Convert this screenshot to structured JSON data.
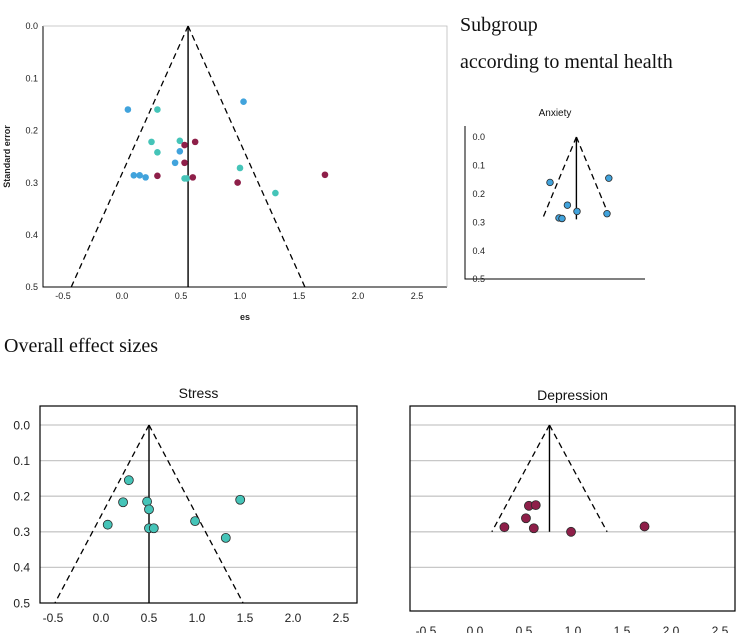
{
  "captions": {
    "subgroup": "Subgroup",
    "subgroup_detail": "according to mental health",
    "overall": "Overall effect sizes"
  },
  "colors": {
    "anxiety": "#41a3dc",
    "stress": "#45c4b8",
    "depression": "#8e1f49",
    "funnel": "#000000",
    "grid": "#c8c8c8"
  },
  "chart_data": [
    {
      "id": "overall",
      "type": "scatter",
      "title": "",
      "xlabel": "es",
      "ylabel": "Standard error",
      "xlim": [
        -0.7,
        2.7
      ],
      "ylim": [
        0,
        0.5
      ],
      "y_reversed": true,
      "x_ticks": [
        "-0.5",
        "0.0",
        "0.5",
        "1.0",
        "1.5",
        "2.0",
        "2.5"
      ],
      "y_ticks": [
        "0.0",
        "0.1",
        "0.2",
        "0.3",
        "0.4",
        "0.5"
      ],
      "grid": false,
      "funnel": {
        "center": 0.56,
        "at_se_0.5": [
          -0.43,
          1.55
        ]
      },
      "series": [
        {
          "color_key": "anxiety",
          "points": [
            [
              0.05,
              0.16
            ],
            [
              1.03,
              0.145
            ],
            [
              0.45,
              0.262
            ],
            [
              0.1,
              0.286
            ],
            [
              0.15,
              0.286
            ],
            [
              0.2,
              0.29
            ],
            [
              0.49,
              0.24
            ]
          ]
        },
        {
          "color_key": "stress",
          "points": [
            [
              0.3,
              0.16
            ],
            [
              0.25,
              0.222
            ],
            [
              0.49,
              0.22
            ],
            [
              0.3,
              0.242
            ],
            [
              0.53,
              0.292
            ],
            [
              0.55,
              0.292
            ],
            [
              1.0,
              0.272
            ],
            [
              1.3,
              0.32
            ]
          ]
        },
        {
          "color_key": "depression",
          "points": [
            [
              0.62,
              0.222
            ],
            [
              0.53,
              0.228
            ],
            [
              0.53,
              0.262
            ],
            [
              0.3,
              0.287
            ],
            [
              0.6,
              0.29
            ],
            [
              0.98,
              0.3
            ],
            [
              1.72,
              0.285
            ]
          ]
        }
      ]
    },
    {
      "id": "anxiety",
      "type": "scatter",
      "title": "Anxiety",
      "xlim": [
        -0.7,
        2.7
      ],
      "ylim": [
        0,
        0.5
      ],
      "y_reversed": true,
      "y_ticks": [
        "0.0",
        "0.1",
        "0.2",
        "0.3",
        "0.4",
        "0.5"
      ],
      "grid": false,
      "funnel": {
        "center": 0.49,
        "se_max": 0.29
      },
      "series": [
        {
          "color_key": "anxiety",
          "points": [
            [
              0.05,
              0.16
            ],
            [
              1.03,
              0.145
            ],
            [
              0.34,
              0.24
            ],
            [
              0.5,
              0.262
            ],
            [
              0.2,
              0.285
            ],
            [
              0.25,
              0.287
            ],
            [
              1.0,
              0.27
            ]
          ]
        }
      ]
    },
    {
      "id": "stress",
      "type": "scatter",
      "title": "Stress",
      "xlim": [
        -0.7,
        2.7
      ],
      "ylim": [
        0,
        0.5
      ],
      "y_reversed": true,
      "x_ticks": [
        "-0.5",
        "0.0",
        "0.5",
        "1.0",
        "1.5",
        "2.0",
        "2.5"
      ],
      "y_ticks": [
        "0.0",
        "0.1",
        "0.2",
        "0.3",
        "0.4",
        "0.5"
      ],
      "grid": true,
      "funnel": {
        "center": 0.5,
        "at_se_0.5": [
          -0.48,
          1.48
        ]
      },
      "series": [
        {
          "color_key": "stress",
          "points": [
            [
              0.29,
              0.155
            ],
            [
              0.23,
              0.217
            ],
            [
              0.48,
              0.215
            ],
            [
              1.45,
              0.21
            ],
            [
              0.5,
              0.237
            ],
            [
              0.07,
              0.28
            ],
            [
              0.5,
              0.29
            ],
            [
              0.55,
              0.29
            ],
            [
              0.98,
              0.27
            ],
            [
              1.3,
              0.317
            ]
          ]
        }
      ]
    },
    {
      "id": "depression",
      "type": "scatter",
      "title": "Depression",
      "xlim": [
        -0.7,
        2.7
      ],
      "ylim": [
        0,
        0.5
      ],
      "y_reversed": true,
      "x_ticks": [
        "-0.5",
        "0.0",
        "0.5",
        "1.0",
        "1.5",
        "2.0",
        "2.5"
      ],
      "grid": true,
      "funnel": {
        "center": 0.76,
        "se_max": 0.3
      },
      "series": [
        {
          "color_key": "depression",
          "points": [
            [
              0.55,
              0.227
            ],
            [
              0.62,
              0.225
            ],
            [
              0.52,
              0.262
            ],
            [
              0.3,
              0.287
            ],
            [
              0.6,
              0.29
            ],
            [
              0.98,
              0.3
            ],
            [
              1.73,
              0.285
            ]
          ]
        }
      ]
    }
  ]
}
